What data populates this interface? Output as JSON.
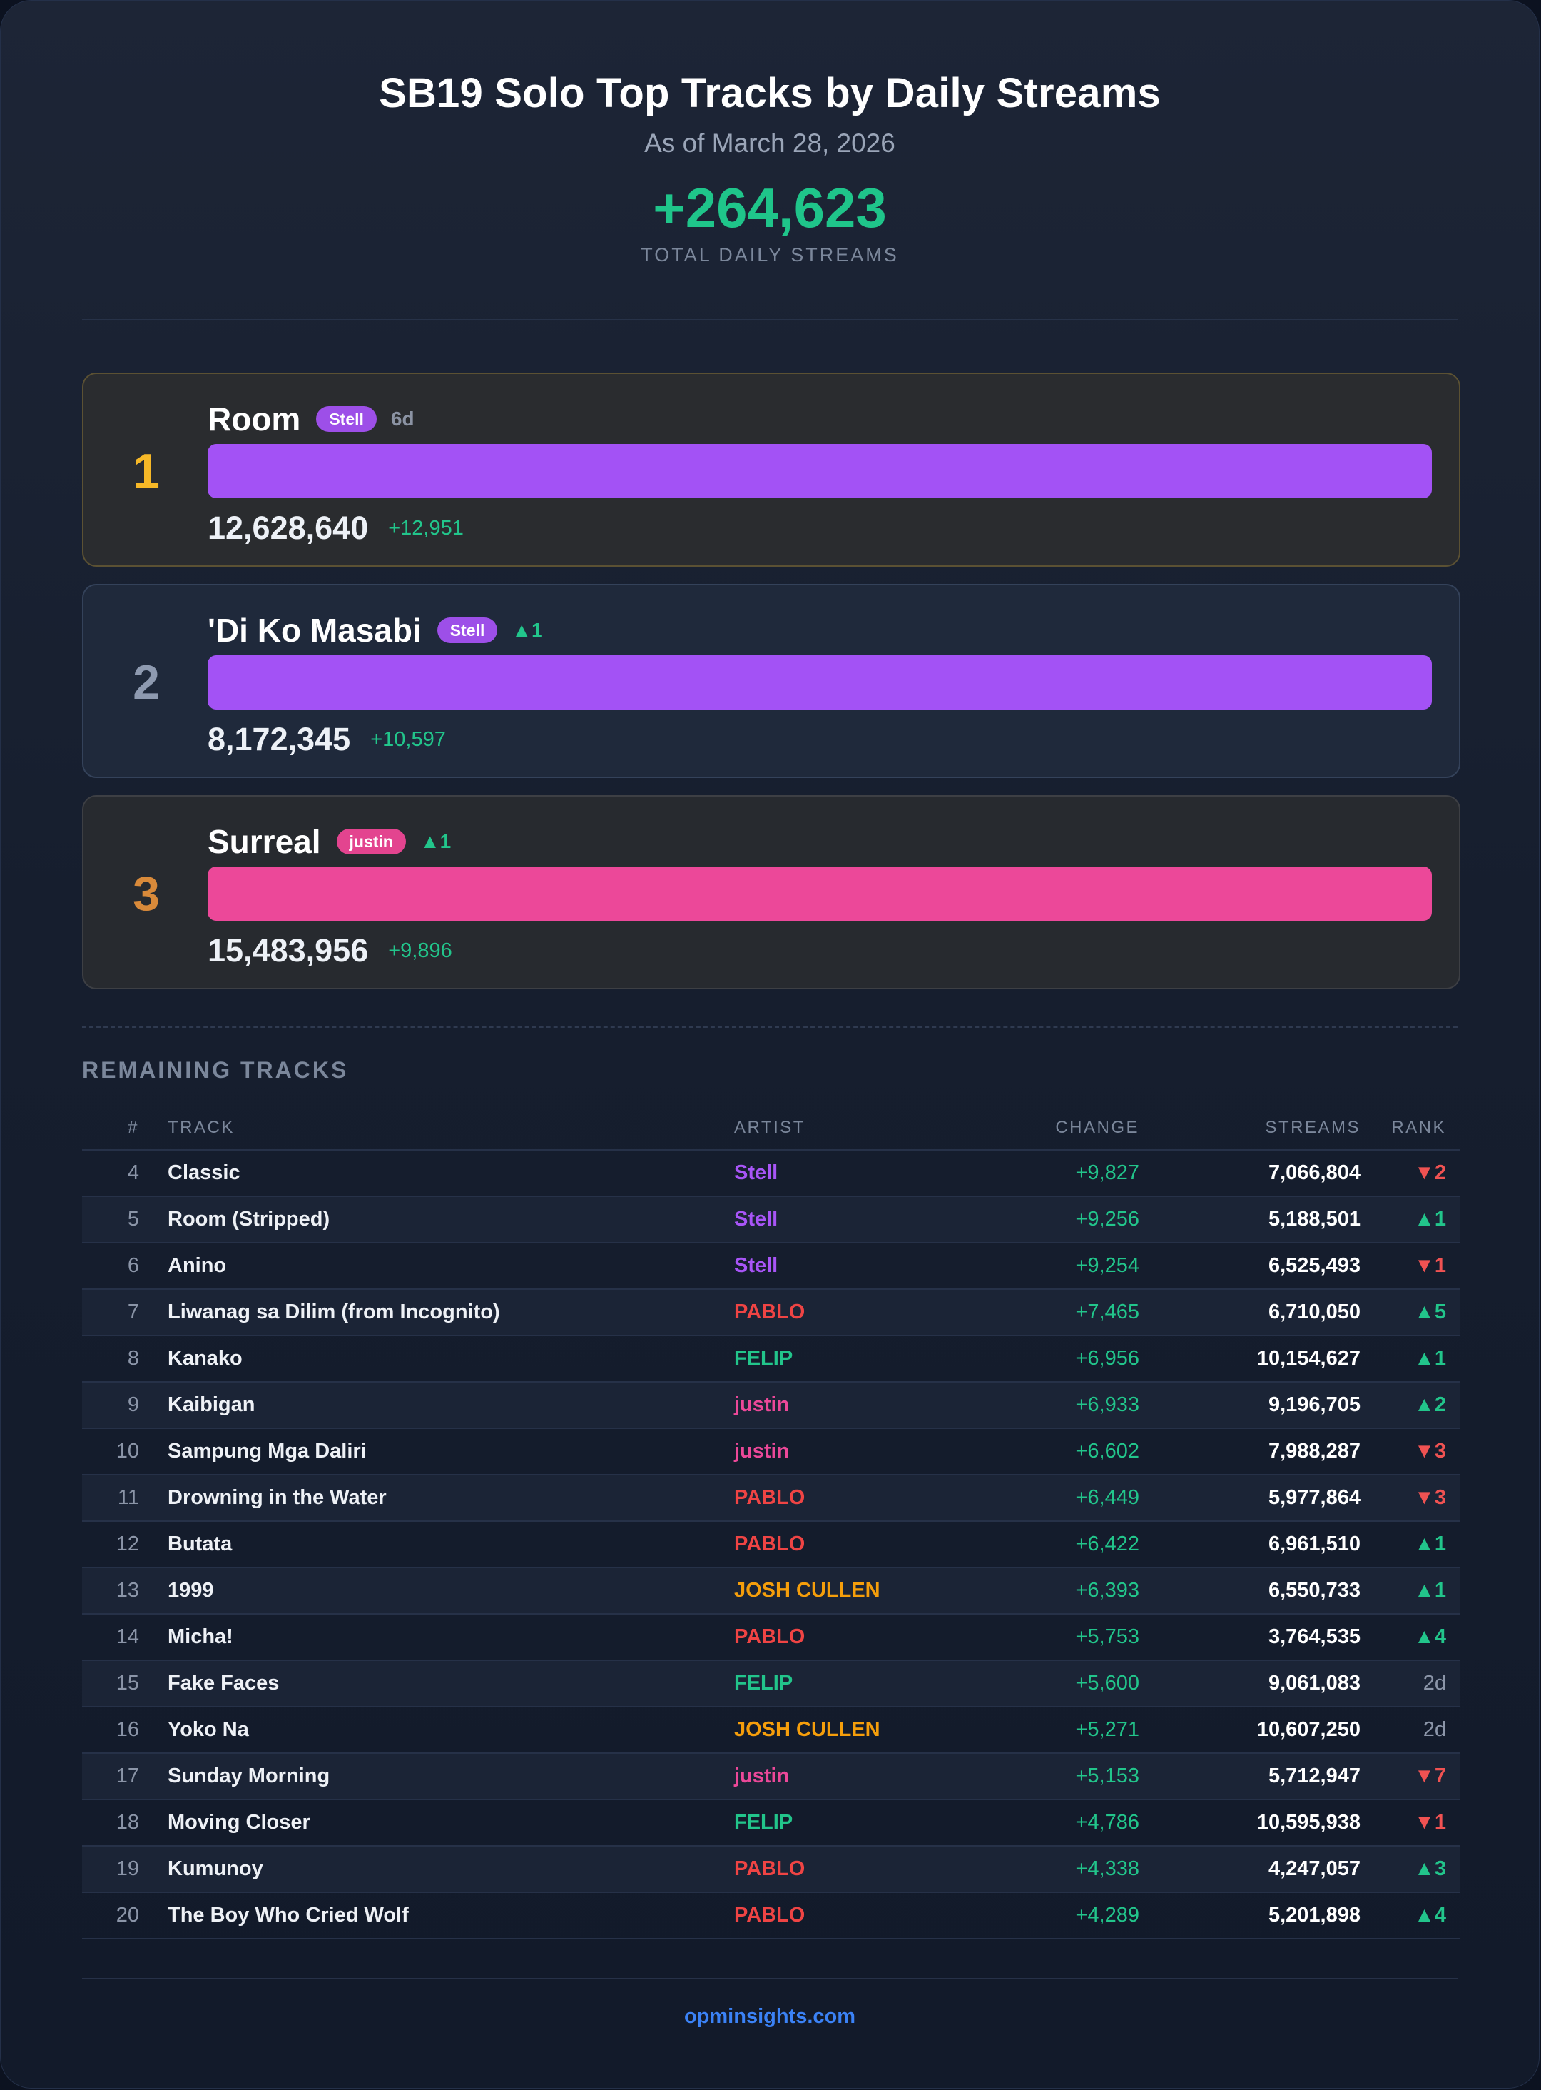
{
  "header": {
    "title": "SB19 Solo Top Tracks by Daily Streams",
    "subtitle": "As of March 28, 2026",
    "total": "+264,623",
    "total_label": "TOTAL DAILY STREAMS"
  },
  "podium": [
    {
      "rank": "1",
      "title": "Room",
      "artist": "Stell",
      "note": "6d",
      "streams": "12,628,640",
      "change": "+12,951",
      "bar_color": "#a352f5"
    },
    {
      "rank": "2",
      "title": "'Di Ko Masabi",
      "artist": "Stell",
      "note": "▲1",
      "streams": "8,172,345",
      "change": "+10,597",
      "bar_color": "#a352f5"
    },
    {
      "rank": "3",
      "title": "Surreal",
      "artist": "justin",
      "note": "▲1",
      "streams": "15,483,956",
      "change": "+9,896",
      "bar_color": "#ec4899"
    }
  ],
  "table": {
    "section_label": "REMAINING TRACKS",
    "columns": {
      "num": "#",
      "track": "TRACK",
      "artist": "ARTIST",
      "change": "CHANGE",
      "streams": "STREAMS",
      "rank": "RANK"
    },
    "rows": [
      {
        "num": "4",
        "track": "Classic",
        "artist": "Stell",
        "change": "+9,827",
        "streams": "7,066,804",
        "rank": "▼2"
      },
      {
        "num": "5",
        "track": "Room (Stripped)",
        "artist": "Stell",
        "change": "+9,256",
        "streams": "5,188,501",
        "rank": "▲1"
      },
      {
        "num": "6",
        "track": "Anino",
        "artist": "Stell",
        "change": "+9,254",
        "streams": "6,525,493",
        "rank": "▼1"
      },
      {
        "num": "7",
        "track": "Liwanag sa Dilim (from Incognito)",
        "artist": "PABLO",
        "change": "+7,465",
        "streams": "6,710,050",
        "rank": "▲5"
      },
      {
        "num": "8",
        "track": "Kanako",
        "artist": "FELIP",
        "change": "+6,956",
        "streams": "10,154,627",
        "rank": "▲1"
      },
      {
        "num": "9",
        "track": "Kaibigan",
        "artist": "justin",
        "change": "+6,933",
        "streams": "9,196,705",
        "rank": "▲2"
      },
      {
        "num": "10",
        "track": "Sampung Mga Daliri",
        "artist": "justin",
        "change": "+6,602",
        "streams": "7,988,287",
        "rank": "▼3"
      },
      {
        "num": "11",
        "track": "Drowning in the Water",
        "artist": "PABLO",
        "change": "+6,449",
        "streams": "5,977,864",
        "rank": "▼3"
      },
      {
        "num": "12",
        "track": "Butata",
        "artist": "PABLO",
        "change": "+6,422",
        "streams": "6,961,510",
        "rank": "▲1"
      },
      {
        "num": "13",
        "track": "1999",
        "artist": "JOSH CULLEN",
        "change": "+6,393",
        "streams": "6,550,733",
        "rank": "▲1"
      },
      {
        "num": "14",
        "track": "Micha!",
        "artist": "PABLO",
        "change": "+5,753",
        "streams": "3,764,535",
        "rank": "▲4"
      },
      {
        "num": "15",
        "track": "Fake Faces",
        "artist": "FELIP",
        "change": "+5,600",
        "streams": "9,061,083",
        "rank": "2d"
      },
      {
        "num": "16",
        "track": "Yoko Na",
        "artist": "JOSH CULLEN",
        "change": "+5,271",
        "streams": "10,607,250",
        "rank": "2d"
      },
      {
        "num": "17",
        "track": "Sunday Morning",
        "artist": "justin",
        "change": "+5,153",
        "streams": "5,712,947",
        "rank": "▼7"
      },
      {
        "num": "18",
        "track": "Moving Closer",
        "artist": "FELIP",
        "change": "+4,786",
        "streams": "10,595,938",
        "rank": "▼1"
      },
      {
        "num": "19",
        "track": "Kumunoy",
        "artist": "PABLO",
        "change": "+4,338",
        "streams": "4,247,057",
        "rank": "▲3"
      },
      {
        "num": "20",
        "track": "The Boy Who Cried Wolf",
        "artist": "PABLO",
        "change": "+4,289",
        "streams": "5,201,898",
        "rank": "▲4"
      }
    ]
  },
  "artist_colors": {
    "Stell": "#a855f7",
    "PABLO": "#ef4444",
    "FELIP": "#22c58b",
    "justin": "#ec4899",
    "JOSH CULLEN": "#f59e0b"
  },
  "footer": {
    "site": "opminsights.com"
  }
}
